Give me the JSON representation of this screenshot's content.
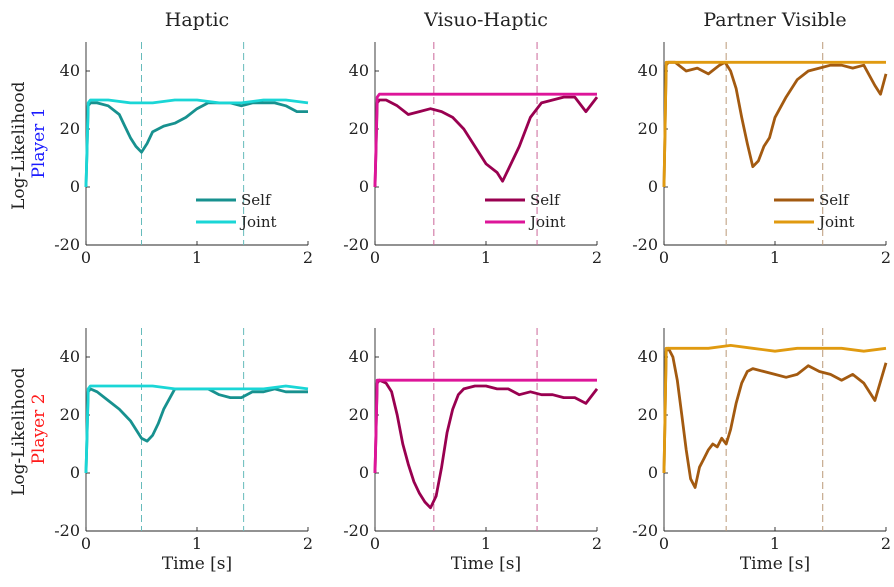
{
  "figure": {
    "column_titles": [
      "Haptic",
      "Visuo-Haptic",
      "Partner Visible"
    ],
    "row_labels": [
      {
        "prefix": "Log-Likelihood",
        "player": "Player 1",
        "player_color": "#1a1aff"
      },
      {
        "prefix": "Log-Likelihood",
        "player": "Player 2",
        "player_color": "#ff1a1a"
      }
    ],
    "xlabel": "Time [s]",
    "legend_labels": [
      "Self",
      "Joint"
    ],
    "show_legend_rows": [
      0
    ]
  },
  "chart_data": [
    {
      "type": "line",
      "title": "Haptic",
      "ylabel": "Log-Likelihood Player 1",
      "xlabel": "",
      "xlim": [
        0,
        2
      ],
      "ylim": [
        -20,
        50
      ],
      "xticks": [
        "0",
        "1",
        "2"
      ],
      "yticks": [
        "-20",
        "0",
        "20",
        "40"
      ],
      "vlines": [
        0.5,
        1.42
      ],
      "vline_color": "#66bbbb",
      "series": [
        {
          "name": "Self",
          "color": "#17918f",
          "x": [
            0,
            0.02,
            0.04,
            0.1,
            0.2,
            0.3,
            0.35,
            0.4,
            0.45,
            0.5,
            0.55,
            0.6,
            0.7,
            0.8,
            0.9,
            1.0,
            1.1,
            1.2,
            1.3,
            1.4,
            1.5,
            1.6,
            1.7,
            1.8,
            1.9,
            2.0
          ],
          "y": [
            0,
            28,
            29,
            29,
            28,
            25,
            21,
            17,
            14,
            12,
            15,
            19,
            21,
            22,
            24,
            27,
            29,
            29,
            29,
            28,
            29,
            29,
            29,
            28,
            26,
            26
          ]
        },
        {
          "name": "Joint",
          "color": "#1ad6d6",
          "x": [
            0,
            0.02,
            0.04,
            0.2,
            0.4,
            0.6,
            0.8,
            1.0,
            1.2,
            1.4,
            1.6,
            1.8,
            2.0
          ],
          "y": [
            0,
            29,
            30,
            30,
            29,
            29,
            30,
            30,
            29,
            29,
            30,
            30,
            29
          ]
        }
      ]
    },
    {
      "type": "line",
      "title": "Visuo-Haptic",
      "ylabel": "",
      "xlabel": "",
      "xlim": [
        0,
        2
      ],
      "ylim": [
        -20,
        50
      ],
      "xticks": [
        "0",
        "1",
        "2"
      ],
      "yticks": [
        "-20",
        "0",
        "20",
        "40"
      ],
      "vlines": [
        0.53,
        1.46
      ],
      "vline_color": "#cc6699",
      "series": [
        {
          "name": "Self",
          "color": "#990050",
          "x": [
            0,
            0.02,
            0.04,
            0.1,
            0.2,
            0.3,
            0.4,
            0.5,
            0.6,
            0.7,
            0.8,
            0.9,
            1.0,
            1.1,
            1.15,
            1.2,
            1.3,
            1.4,
            1.5,
            1.6,
            1.7,
            1.8,
            1.9,
            2.0
          ],
          "y": [
            0,
            29,
            30,
            30,
            28,
            25,
            26,
            27,
            26,
            24,
            20,
            14,
            8,
            5,
            2,
            6,
            14,
            24,
            29,
            30,
            31,
            31,
            26,
            31
          ]
        },
        {
          "name": "Joint",
          "color": "#dd1599",
          "x": [
            0,
            0.02,
            0.04,
            0.2,
            0.4,
            0.6,
            0.8,
            1.0,
            1.2,
            1.4,
            1.6,
            1.8,
            2.0
          ],
          "y": [
            0,
            31,
            32,
            32,
            32,
            32,
            32,
            32,
            32,
            32,
            32,
            32,
            32
          ]
        }
      ]
    },
    {
      "type": "line",
      "title": "Partner Visible",
      "ylabel": "",
      "xlabel": "",
      "xlim": [
        0,
        2
      ],
      "ylim": [
        -20,
        50
      ],
      "xticks": [
        "0",
        "1",
        "2"
      ],
      "yticks": [
        "-20",
        "0",
        "20",
        "40"
      ],
      "vlines": [
        0.56,
        1.43
      ],
      "vline_color": "#bb9977",
      "series": [
        {
          "name": "Self",
          "color": "#a35a10",
          "x": [
            0,
            0.02,
            0.04,
            0.1,
            0.2,
            0.3,
            0.4,
            0.5,
            0.55,
            0.6,
            0.65,
            0.7,
            0.75,
            0.8,
            0.85,
            0.9,
            0.95,
            1.0,
            1.1,
            1.2,
            1.3,
            1.4,
            1.5,
            1.6,
            1.7,
            1.8,
            1.9,
            1.95,
            2.0
          ],
          "y": [
            0,
            42,
            43,
            43,
            40,
            41,
            39,
            42,
            43,
            40,
            34,
            24,
            15,
            7,
            9,
            14,
            17,
            24,
            31,
            37,
            40,
            41,
            42,
            42,
            41,
            42,
            35,
            32,
            39
          ]
        },
        {
          "name": "Joint",
          "color": "#e09a10",
          "x": [
            0,
            0.02,
            0.04,
            0.2,
            0.4,
            0.6,
            0.8,
            1.0,
            1.2,
            1.4,
            1.6,
            1.8,
            2.0
          ],
          "y": [
            0,
            43,
            43,
            43,
            43,
            43,
            43,
            43,
            43,
            43,
            43,
            43,
            43
          ]
        }
      ]
    },
    {
      "type": "line",
      "title": "",
      "ylabel": "Log-Likelihood Player 2",
      "xlabel": "Time [s]",
      "xlim": [
        0,
        2
      ],
      "ylim": [
        -20,
        50
      ],
      "xticks": [
        "0",
        "1",
        "2"
      ],
      "yticks": [
        "-20",
        "0",
        "20",
        "40"
      ],
      "vlines": [
        0.5,
        1.42
      ],
      "vline_color": "#66bbbb",
      "series": [
        {
          "name": "Self",
          "color": "#17918f",
          "x": [
            0,
            0.02,
            0.04,
            0.1,
            0.2,
            0.3,
            0.4,
            0.5,
            0.55,
            0.6,
            0.65,
            0.7,
            0.8,
            0.9,
            1.0,
            1.1,
            1.2,
            1.3,
            1.4,
            1.5,
            1.6,
            1.7,
            1.8,
            1.9,
            2.0
          ],
          "y": [
            0,
            28,
            29,
            28,
            25,
            22,
            18,
            12,
            11,
            13,
            17,
            22,
            29,
            29,
            29,
            29,
            27,
            26,
            26,
            28,
            28,
            29,
            28,
            28,
            28
          ]
        },
        {
          "name": "Joint",
          "color": "#1ad6d6",
          "x": [
            0,
            0.02,
            0.04,
            0.2,
            0.4,
            0.6,
            0.8,
            1.0,
            1.2,
            1.4,
            1.6,
            1.8,
            2.0
          ],
          "y": [
            0,
            29,
            30,
            30,
            30,
            30,
            29,
            29,
            29,
            29,
            29,
            30,
            29
          ]
        }
      ]
    },
    {
      "type": "line",
      "title": "",
      "ylabel": "",
      "xlabel": "Time [s]",
      "xlim": [
        0,
        2
      ],
      "ylim": [
        -20,
        50
      ],
      "xticks": [
        "0",
        "1",
        "2"
      ],
      "yticks": [
        "-20",
        "0",
        "20",
        "40"
      ],
      "vlines": [
        0.53,
        1.46
      ],
      "vline_color": "#cc6699",
      "series": [
        {
          "name": "Self",
          "color": "#990050",
          "x": [
            0,
            0.02,
            0.04,
            0.1,
            0.15,
            0.2,
            0.25,
            0.3,
            0.35,
            0.4,
            0.45,
            0.5,
            0.55,
            0.6,
            0.65,
            0.7,
            0.75,
            0.8,
            0.9,
            1.0,
            1.1,
            1.2,
            1.3,
            1.4,
            1.5,
            1.6,
            1.7,
            1.8,
            1.9,
            2.0
          ],
          "y": [
            0,
            31,
            32,
            31,
            28,
            20,
            10,
            3,
            -3,
            -7,
            -10,
            -12,
            -8,
            2,
            14,
            22,
            27,
            29,
            30,
            30,
            29,
            29,
            27,
            28,
            27,
            27,
            26,
            26,
            24,
            29
          ]
        },
        {
          "name": "Joint",
          "color": "#dd1599",
          "x": [
            0,
            0.02,
            0.04,
            0.2,
            0.4,
            0.6,
            0.8,
            1.0,
            1.2,
            1.4,
            1.6,
            1.8,
            2.0
          ],
          "y": [
            0,
            32,
            32,
            32,
            32,
            32,
            32,
            32,
            32,
            32,
            32,
            32,
            32
          ]
        }
      ]
    },
    {
      "type": "line",
      "title": "",
      "ylabel": "",
      "xlabel": "Time [s]",
      "xlim": [
        0,
        2
      ],
      "ylim": [
        -20,
        50
      ],
      "xticks": [
        "0",
        "1",
        "2"
      ],
      "yticks": [
        "-20",
        "0",
        "20",
        "40"
      ],
      "vlines": [
        0.56,
        1.43
      ],
      "vline_color": "#bb9977",
      "series": [
        {
          "name": "Self",
          "color": "#a35a10",
          "x": [
            0,
            0.02,
            0.04,
            0.08,
            0.12,
            0.16,
            0.2,
            0.24,
            0.28,
            0.32,
            0.36,
            0.4,
            0.44,
            0.48,
            0.52,
            0.56,
            0.6,
            0.65,
            0.7,
            0.75,
            0.8,
            0.9,
            1.0,
            1.1,
            1.2,
            1.3,
            1.4,
            1.5,
            1.6,
            1.7,
            1.8,
            1.9,
            2.0
          ],
          "y": [
            0,
            42,
            43,
            40,
            32,
            20,
            8,
            -2,
            -5,
            2,
            5,
            8,
            10,
            9,
            12,
            10,
            15,
            24,
            31,
            35,
            36,
            35,
            34,
            33,
            34,
            37,
            35,
            34,
            32,
            34,
            31,
            25,
            38
          ]
        },
        {
          "name": "Joint",
          "color": "#e09a10",
          "x": [
            0,
            0.02,
            0.04,
            0.2,
            0.4,
            0.6,
            0.8,
            1.0,
            1.2,
            1.4,
            1.6,
            1.8,
            2.0
          ],
          "y": [
            0,
            43,
            43,
            43,
            43,
            44,
            43,
            42,
            43,
            43,
            43,
            42,
            43
          ]
        }
      ]
    }
  ]
}
